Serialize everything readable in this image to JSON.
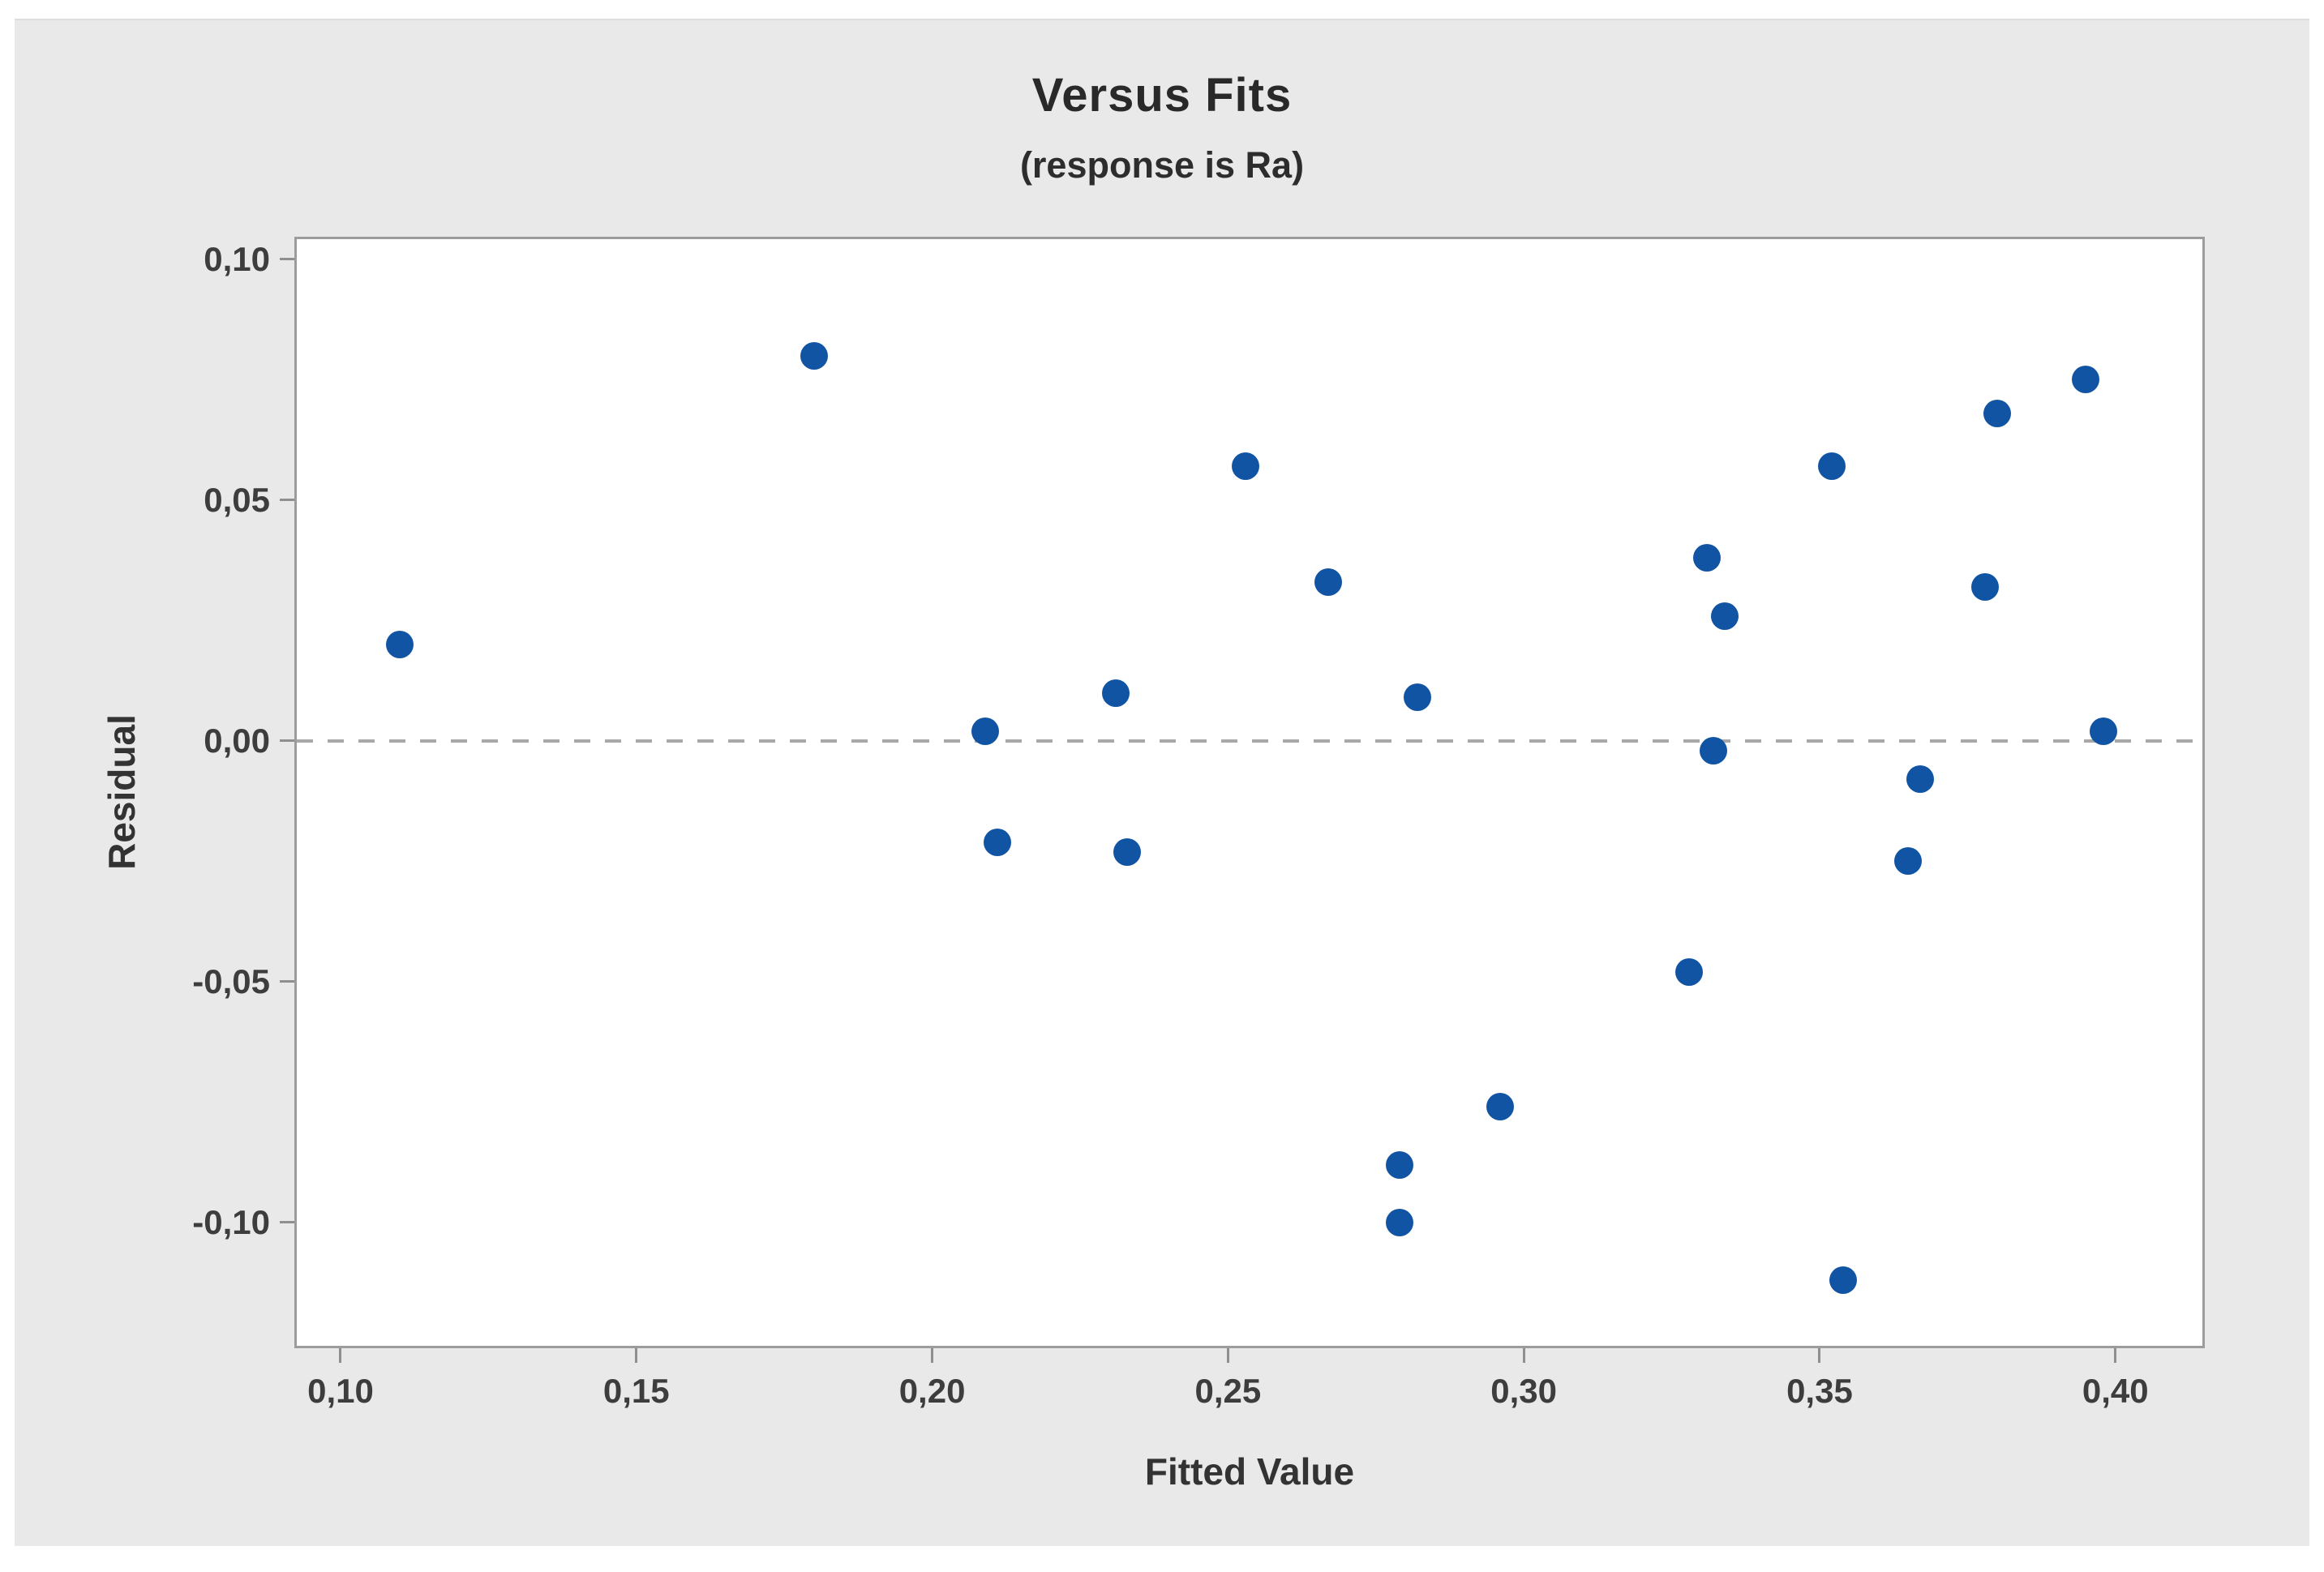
{
  "chart_data": {
    "type": "scatter",
    "title": "Versus Fits",
    "subtitle": "(response is Ra)",
    "xlabel": "Fitted Value",
    "ylabel": "Residual",
    "decimal_separator": "comma",
    "grid": false,
    "legend": "none",
    "xlim": [
      0.0926,
      0.4147
    ],
    "ylim": [
      -0.1256,
      0.1042
    ],
    "x_ticks": [
      {
        "v": 0.1,
        "label": "0,10"
      },
      {
        "v": 0.15,
        "label": "0,15"
      },
      {
        "v": 0.2,
        "label": "0,20"
      },
      {
        "v": 0.25,
        "label": "0,25"
      },
      {
        "v": 0.3,
        "label": "0,30"
      },
      {
        "v": 0.35,
        "label": "0,35"
      },
      {
        "v": 0.4,
        "label": "0,40"
      }
    ],
    "y_ticks": [
      {
        "v": 0.1,
        "label": "0,10"
      },
      {
        "v": 0.05,
        "label": "0,05"
      },
      {
        "v": 0.0,
        "label": "0,00"
      },
      {
        "v": -0.05,
        "label": "-0,05"
      },
      {
        "v": -0.1,
        "label": "-0,10"
      }
    ],
    "reference_line_y": 0.0,
    "points": [
      [
        0.11,
        0.02
      ],
      [
        0.18,
        0.08
      ],
      [
        0.209,
        0.002
      ],
      [
        0.211,
        -0.021
      ],
      [
        0.231,
        0.01
      ],
      [
        0.233,
        -0.023
      ],
      [
        0.253,
        0.057
      ],
      [
        0.267,
        0.033
      ],
      [
        0.279,
        -0.088
      ],
      [
        0.279,
        -0.1
      ],
      [
        0.282,
        0.009
      ],
      [
        0.296,
        -0.076
      ],
      [
        0.328,
        -0.048
      ],
      [
        0.331,
        0.038
      ],
      [
        0.332,
        -0.002
      ],
      [
        0.334,
        0.026
      ],
      [
        0.352,
        0.057
      ],
      [
        0.354,
        -0.112
      ],
      [
        0.365,
        -0.025
      ],
      [
        0.367,
        -0.008
      ],
      [
        0.378,
        0.032
      ],
      [
        0.38,
        0.068
      ],
      [
        0.395,
        0.075
      ],
      [
        0.398,
        0.002
      ]
    ],
    "colors": {
      "marker": "#1254a4",
      "reference_line": "#a8a8a8",
      "plot_background": "#ffffff",
      "figure_background": "#e9e9e9",
      "axis_border": "#9c9c9c"
    }
  }
}
